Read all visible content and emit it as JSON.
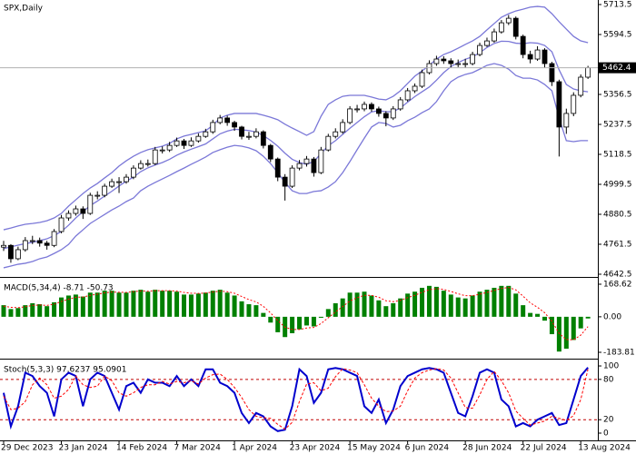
{
  "chart_data": [
    {
      "type": "candlestick",
      "title": "SPX,Daily",
      "categories": [
        "29 Dec 2023",
        null,
        null,
        null,
        null,
        null,
        null,
        null,
        "23 Jan 2024",
        null,
        null,
        null,
        null,
        null,
        null,
        null,
        "14 Feb 2024",
        null,
        null,
        null,
        null,
        null,
        null,
        null,
        "7 Mar 2024",
        null,
        null,
        null,
        null,
        null,
        null,
        null,
        "1 Apr 2024",
        null,
        null,
        null,
        null,
        null,
        null,
        null,
        "23 Apr 2024",
        null,
        null,
        null,
        null,
        null,
        null,
        null,
        "15 May 2024",
        null,
        null,
        null,
        null,
        null,
        null,
        null,
        "6 Jun 2024",
        null,
        null,
        null,
        null,
        null,
        null,
        null,
        "28 Jun 2024",
        null,
        null,
        null,
        null,
        null,
        null,
        null,
        "22 Jul 2024",
        null,
        null,
        null,
        null,
        null,
        null,
        null,
        "13 Aug 2024",
        null
      ],
      "open": [
        4750,
        4757,
        4704,
        4740,
        4776,
        4776,
        4766,
        4757,
        4812,
        4866,
        4884,
        4902,
        4884,
        4956,
        4956,
        4992,
        5010,
        5010,
        5028,
        5064,
        5082,
        5082,
        5136,
        5136,
        5154,
        5172,
        5154,
        5172,
        5190,
        5208,
        5245,
        5263,
        5245,
        5227,
        5190,
        5190,
        5208,
        5154,
        5100,
        5028,
        4992,
        5064,
        5082,
        5100,
        5046,
        5136,
        5190,
        5208,
        5245,
        5299,
        5299,
        5317,
        5299,
        5281,
        5263,
        5299,
        5335,
        5371,
        5389,
        5443,
        5479,
        5497,
        5490,
        5479,
        5479,
        5479,
        5515,
        5551,
        5569,
        5605,
        5641,
        5659,
        5587,
        5515,
        5497,
        5533,
        5479,
        5407,
        5227,
        5281,
        5353,
        5425
      ],
      "high": [
        4775,
        4762,
        4752,
        4790,
        4795,
        4788,
        4775,
        4822,
        4878,
        4896,
        4915,
        4912,
        4966,
        4972,
        5002,
        5022,
        5028,
        5040,
        5075,
        5095,
        5098,
        5148,
        5150,
        5168,
        5185,
        5180,
        5186,
        5202,
        5220,
        5256,
        5275,
        5272,
        5252,
        5232,
        5208,
        5222,
        5214,
        5160,
        5106,
        5040,
        5075,
        5096,
        5112,
        5108,
        5148,
        5200,
        5222,
        5258,
        5310,
        5315,
        5328,
        5325,
        5308,
        5290,
        5310,
        5346,
        5382,
        5400,
        5455,
        5492,
        5510,
        5508,
        5500,
        5495,
        5498,
        5526,
        5562,
        5582,
        5618,
        5652,
        5672,
        5666,
        5594,
        5530,
        5548,
        5540,
        5486,
        5415,
        5300,
        5365,
        5436,
        5470
      ],
      "low": [
        4735,
        4688,
        4698,
        4732,
        4762,
        4752,
        4740,
        4750,
        4805,
        4855,
        4875,
        4862,
        4878,
        4940,
        4948,
        4985,
        4965,
        5002,
        5020,
        5058,
        5070,
        5076,
        5122,
        5128,
        5148,
        5140,
        5148,
        5165,
        5184,
        5200,
        5238,
        5232,
        5212,
        5178,
        5176,
        5182,
        5142,
        5088,
        5012,
        4935,
        4985,
        5055,
        5070,
        5030,
        5040,
        5130,
        5182,
        5200,
        5238,
        5285,
        5290,
        5288,
        5268,
        5230,
        5255,
        5292,
        5328,
        5362,
        5382,
        5436,
        5470,
        5478,
        5462,
        5465,
        5462,
        5472,
        5508,
        5545,
        5562,
        5598,
        5632,
        5575,
        5500,
        5480,
        5490,
        5462,
        5390,
        5110,
        5200,
        5270,
        5345,
        5418
      ],
      "close": [
        4757,
        4704,
        4740,
        4776,
        4776,
        4766,
        4757,
        4812,
        4866,
        4884,
        4902,
        4884,
        4956,
        4956,
        4992,
        5010,
        5010,
        5028,
        5064,
        5082,
        5082,
        5136,
        5136,
        5154,
        5172,
        5154,
        5172,
        5190,
        5208,
        5245,
        5263,
        5245,
        5227,
        5190,
        5190,
        5208,
        5154,
        5100,
        5028,
        4992,
        5064,
        5082,
        5100,
        5046,
        5136,
        5190,
        5208,
        5245,
        5299,
        5299,
        5317,
        5299,
        5281,
        5263,
        5299,
        5335,
        5371,
        5389,
        5443,
        5479,
        5497,
        5490,
        5479,
        5479,
        5479,
        5515,
        5551,
        5569,
        5605,
        5641,
        5659,
        5587,
        5515,
        5497,
        5533,
        5479,
        5407,
        5227,
        5281,
        5353,
        5425,
        5462.4
      ],
      "bands": {
        "color": "#7b78d8",
        "upper": [
          4819,
          4826,
          4834,
          4841,
          4844,
          4848,
          4855,
          4866,
          4884,
          4913,
          4938,
          4963,
          4985,
          5003,
          5025,
          5046,
          5072,
          5093,
          5111,
          5126,
          5137,
          5144,
          5151,
          5162,
          5180,
          5191,
          5198,
          5205,
          5212,
          5234,
          5263,
          5274,
          5281,
          5281,
          5281,
          5281,
          5274,
          5266,
          5256,
          5238,
          5223,
          5209,
          5194,
          5209,
          5270,
          5317,
          5335,
          5349,
          5353,
          5353,
          5353,
          5346,
          5338,
          5335,
          5349,
          5371,
          5400,
          5429,
          5450,
          5472,
          5497,
          5515,
          5526,
          5540,
          5555,
          5569,
          5587,
          5613,
          5638,
          5663,
          5677,
          5688,
          5695,
          5703,
          5706,
          5703,
          5677,
          5645,
          5616,
          5587,
          5569,
          5562
        ],
        "middle": [
          4744,
          4751,
          4758,
          4764,
          4769,
          4776,
          4783,
          4796,
          4812,
          4837,
          4866,
          4891,
          4915,
          4933,
          4953,
          4972,
          4993,
          5012,
          5028,
          5050,
          5065,
          5076,
          5086,
          5099,
          5115,
          5128,
          5139,
          5149,
          5160,
          5180,
          5200,
          5211,
          5218,
          5216,
          5213,
          5207,
          5193,
          5174,
          5151,
          5123,
          5099,
          5086,
          5079,
          5090,
          5122,
          5153,
          5173,
          5198,
          5222,
          5245,
          5268,
          5287,
          5292,
          5288,
          5288,
          5303,
          5326,
          5348,
          5367,
          5386,
          5413,
          5443,
          5467,
          5483,
          5496,
          5506,
          5522,
          5543,
          5559,
          5568,
          5567,
          5560,
          5558,
          5562,
          5560,
          5551,
          5526,
          5454,
          5396,
          5378,
          5371,
          5367
        ],
        "lower": [
          4668,
          4675,
          4682,
          4686,
          4693,
          4704,
          4711,
          4725,
          4740,
          4761,
          4794,
          4819,
          4844,
          4862,
          4880,
          4898,
          4913,
          4931,
          4945,
          4974,
          4992,
          5007,
          5021,
          5035,
          5050,
          5064,
          5079,
          5093,
          5108,
          5126,
          5137,
          5147,
          5154,
          5151,
          5144,
          5133,
          5111,
          5082,
          5046,
          5007,
          4974,
          4963,
          4963,
          4971,
          4974,
          4989,
          5010,
          5046,
          5090,
          5137,
          5183,
          5227,
          5245,
          5241,
          5227,
          5234,
          5252,
          5266,
          5284,
          5299,
          5328,
          5371,
          5407,
          5425,
          5436,
          5443,
          5457,
          5472,
          5479,
          5472,
          5457,
          5432,
          5421,
          5421,
          5414,
          5396,
          5371,
          5263,
          5173,
          5169,
          5173,
          5173
        ]
      },
      "up_color": "#ffffff",
      "down_color": "#000000",
      "last_price_color": "#b0b0b0",
      "ylim": [
        4631.7,
        5731.5
      ],
      "yticks": [
        5713.5,
        5594.5,
        5356.5,
        5237.5,
        5118.5,
        4999.5,
        4880.5,
        4761.5,
        4642.5
      ]
    },
    {
      "type": "bar",
      "title": "MACD(5,34,4) -8.71 -50.73",
      "color": "#008000",
      "values": [
        60,
        40,
        45,
        60,
        70,
        65,
        55,
        75,
        100,
        110,
        115,
        105,
        125,
        125,
        135,
        135,
        125,
        125,
        135,
        140,
        130,
        140,
        135,
        135,
        130,
        115,
        115,
        120,
        125,
        135,
        140,
        125,
        110,
        80,
        65,
        60,
        20,
        -30,
        -80,
        -105,
        -85,
        -65,
        -45,
        -50,
        -5,
        40,
        70,
        95,
        125,
        125,
        130,
        110,
        85,
        55,
        70,
        95,
        120,
        130,
        150,
        160,
        155,
        135,
        115,
        100,
        95,
        110,
        130,
        140,
        150,
        160,
        160,
        120,
        60,
        20,
        15,
        -20,
        -90,
        -180,
        -165,
        -120,
        -60,
        -8.71
      ],
      "signal": {
        "color": "#ff0000",
        "values": [
          55,
          49,
          47,
          52,
          59,
          61,
          59,
          65,
          79,
          91,
          101,
          102,
          111,
          117,
          124,
          128,
          127,
          126,
          130,
          134,
          132,
          135,
          135,
          135,
          133,
          126,
          122,
          121,
          123,
          128,
          133,
          130,
          122,
          105,
          89,
          77,
          54,
          20,
          -20,
          -54,
          -66,
          -66,
          -58,
          -55,
          -35,
          -5,
          25,
          53,
          82,
          99,
          111,
          111,
          101,
          83,
          78,
          85,
          99,
          111,
          127,
          140,
          146,
          142,
          131,
          119,
          109,
          109,
          117,
          126,
          136,
          146,
          152,
          139,
          107,
          72,
          49,
          21,
          -23,
          -86,
          -118,
          -119,
          -95,
          -50.73
        ]
      },
      "ylim": [
        -216.7,
        192.1
      ],
      "yticks": [
        168.62,
        {
          "value": 0,
          "label": "0.00"
        },
        -183.81
      ]
    },
    {
      "type": "line",
      "title": "Stoch(5,3,3) 97.6237 95.0901",
      "series": [
        {
          "color": "#0000cd",
          "values": [
            60,
            10,
            40,
            90,
            85,
            70,
            60,
            25,
            80,
            90,
            85,
            40,
            80,
            90,
            85,
            60,
            35,
            70,
            75,
            60,
            80,
            75,
            75,
            70,
            85,
            70,
            80,
            70,
            95,
            95,
            75,
            70,
            60,
            30,
            15,
            30,
            25,
            10,
            3,
            5,
            40,
            95,
            85,
            45,
            60,
            95,
            97,
            95,
            90,
            85,
            40,
            30,
            50,
            15,
            35,
            70,
            85,
            90,
            95,
            97,
            95,
            90,
            60,
            30,
            25,
            55,
            90,
            95,
            90,
            50,
            40,
            10,
            15,
            10,
            20,
            25,
            30,
            12,
            15,
            50,
            85,
            97.6237
          ]
        },
        {
          "color": "#ff0000",
          "dashed": true,
          "values": [
            55,
            35,
            37,
            47,
            72,
            82,
            72,
            52,
            55,
            65,
            85,
            72,
            68,
            70,
            85,
            78,
            60,
            55,
            60,
            68,
            72,
            72,
            77,
            73,
            77,
            75,
            78,
            73,
            82,
            87,
            88,
            80,
            68,
            53,
            35,
            25,
            23,
            22,
            13,
            6,
            16,
            47,
            73,
            75,
            63,
            67,
            84,
            96,
            94,
            90,
            72,
            52,
            40,
            32,
            33,
            40,
            63,
            82,
            90,
            94,
            96,
            94,
            82,
            60,
            38,
            37,
            57,
            80,
            92,
            78,
            60,
            33,
            22,
            12,
            15,
            18,
            25,
            22,
            19,
            26,
            50,
            95.0901
          ]
        }
      ],
      "levels": [
        80,
        20
      ],
      "level_color": "#c00000",
      "ylim": [
        -10.8,
        106.8
      ],
      "yticks": [
        100,
        80,
        20,
        0
      ]
    }
  ]
}
